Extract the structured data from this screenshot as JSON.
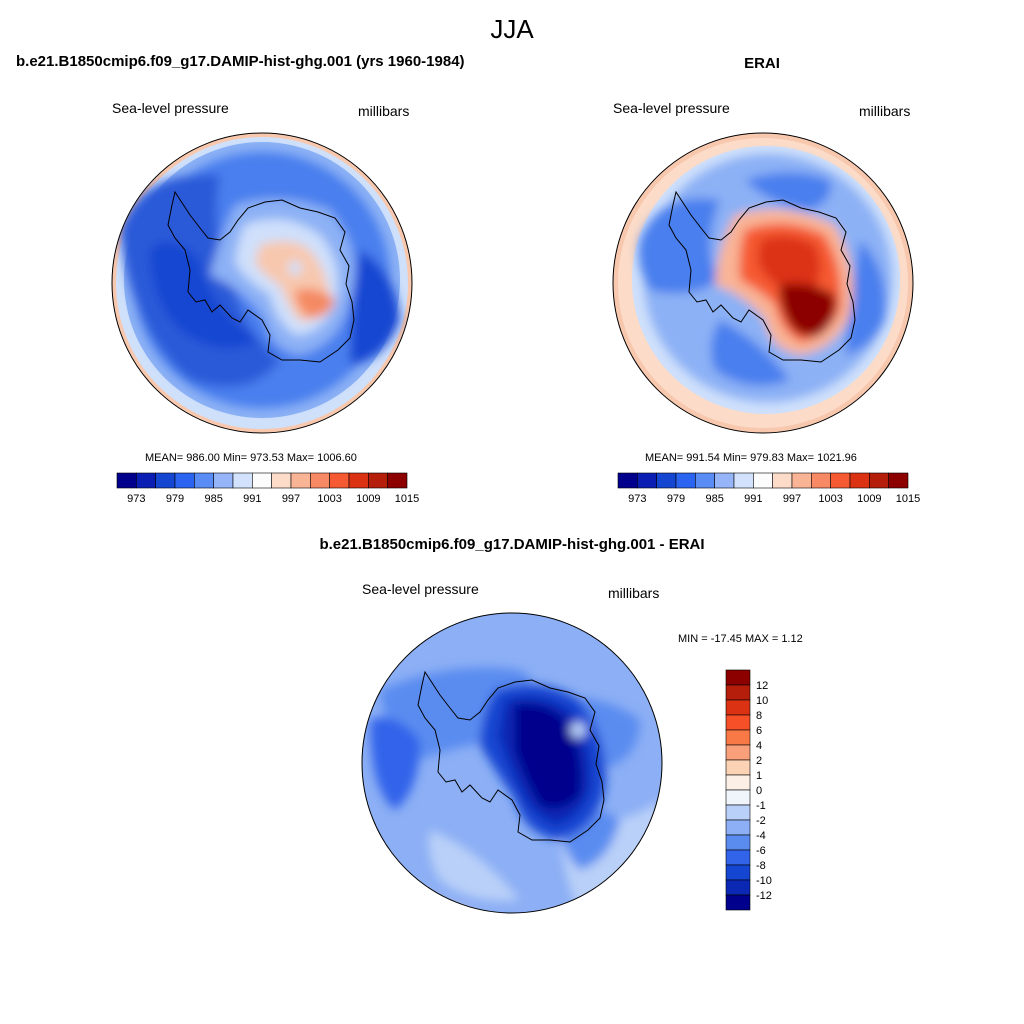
{
  "season_title": "JJA",
  "panels": {
    "model": {
      "title": "b.e21.B1850cmip6.f09_g17.DAMIP-hist-ghg.001 (yrs 1960-1984)",
      "left_label": "Sea-level pressure",
      "right_label": "millibars",
      "stats": "MEAN= 986.00  Min= 973.53  Max= 1006.60"
    },
    "obs": {
      "title": "ERAI",
      "left_label": "Sea-level pressure",
      "right_label": "millibars",
      "stats": "MEAN= 991.54  Min= 979.83  Max= 1021.96"
    },
    "diff": {
      "title": "b.e21.B1850cmip6.f09_g17.DAMIP-hist-ghg.001 - ERAI",
      "left_label": "Sea-level pressure",
      "right_label": "millibars",
      "stats": "MIN = -17.45 MAX =   1.12"
    }
  },
  "colorbars": {
    "absolute": {
      "labels": [
        "973",
        "979",
        "985",
        "991",
        "997",
        "1003",
        "1009",
        "1015"
      ],
      "colors": [
        "#00008c",
        "#0a1eb4",
        "#1446d2",
        "#2a64f0",
        "#5a8cf5",
        "#96b4f8",
        "#d2e1fc",
        "#fcfcfc",
        "#fcdcc8",
        "#f9b496",
        "#f78a64",
        "#f55a32",
        "#dc3214",
        "#b41e0a",
        "#8c0000"
      ]
    },
    "difference": {
      "labels": [
        "12",
        "10",
        "8",
        "6",
        "4",
        "2",
        "1",
        "0",
        "-1",
        "-2",
        "-4",
        "-6",
        "-8",
        "-10",
        "-12"
      ],
      "colors": [
        "#8c0000",
        "#b41e0a",
        "#dc3214",
        "#f55028",
        "#f87846",
        "#f9a07a",
        "#fcd2b4",
        "#fcf0e6",
        "#f0f5fc",
        "#b9d0f8",
        "#8caff5",
        "#5a8cf0",
        "#3264ea",
        "#1446d2",
        "#0a28b4",
        "#00008c"
      ]
    }
  },
  "colors": {
    "ocean_low": "#2a5ad8",
    "ocean_mid": "#4a7fee",
    "ocean_light": "#8cb1f5",
    "pale": "#cfe0fb",
    "warm_light": "#f8c8ae",
    "warm_mid": "#f48a64",
    "warm_high": "#d8361a",
    "warm_max": "#8c0000",
    "deep_low": "#0a1aa0"
  }
}
